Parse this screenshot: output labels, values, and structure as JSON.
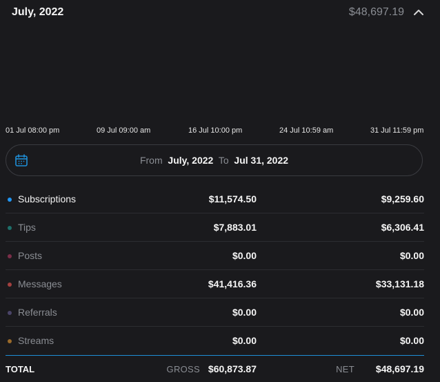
{
  "header": {
    "title": "July, 2022",
    "total": "$48,697.19"
  },
  "chart_data": {
    "type": "line",
    "x_ticks": [
      "01 Jul 08:00 pm",
      "09 Jul 09:00 am",
      "16 Jul 10:00 pm",
      "24 Jul 10:59 am",
      "31 Jul 11:59 pm"
    ]
  },
  "date_range": {
    "from_label": "From",
    "from_value": "July, 2022",
    "to_label": "To",
    "to_value": "Jul 31, 2022"
  },
  "categories": [
    {
      "name": "Subscriptions",
      "gross": "$11,574.50",
      "net": "$9,259.60",
      "color": "#2196f3",
      "active": true
    },
    {
      "name": "Tips",
      "gross": "$7,883.01",
      "net": "$6,306.41",
      "color": "#1e6f6a",
      "active": false
    },
    {
      "name": "Posts",
      "gross": "$0.00",
      "net": "$0.00",
      "color": "#7a2e48",
      "active": false
    },
    {
      "name": "Messages",
      "gross": "$41,416.36",
      "net": "$33,131.18",
      "color": "#a2403f",
      "active": false
    },
    {
      "name": "Referrals",
      "gross": "$0.00",
      "net": "$0.00",
      "color": "#4a4468",
      "active": false
    },
    {
      "name": "Streams",
      "gross": "$0.00",
      "net": "$0.00",
      "color": "#9a6a2a",
      "active": false
    }
  ],
  "total": {
    "label": "TOTAL",
    "gross_label": "GROSS",
    "gross_value": "$60,873.87",
    "net_label": "NET",
    "net_value": "$48,697.19"
  },
  "colors": {
    "background": "#1a1a1d",
    "accent": "#1e8fd8",
    "muted_text": "#8a8d93"
  }
}
